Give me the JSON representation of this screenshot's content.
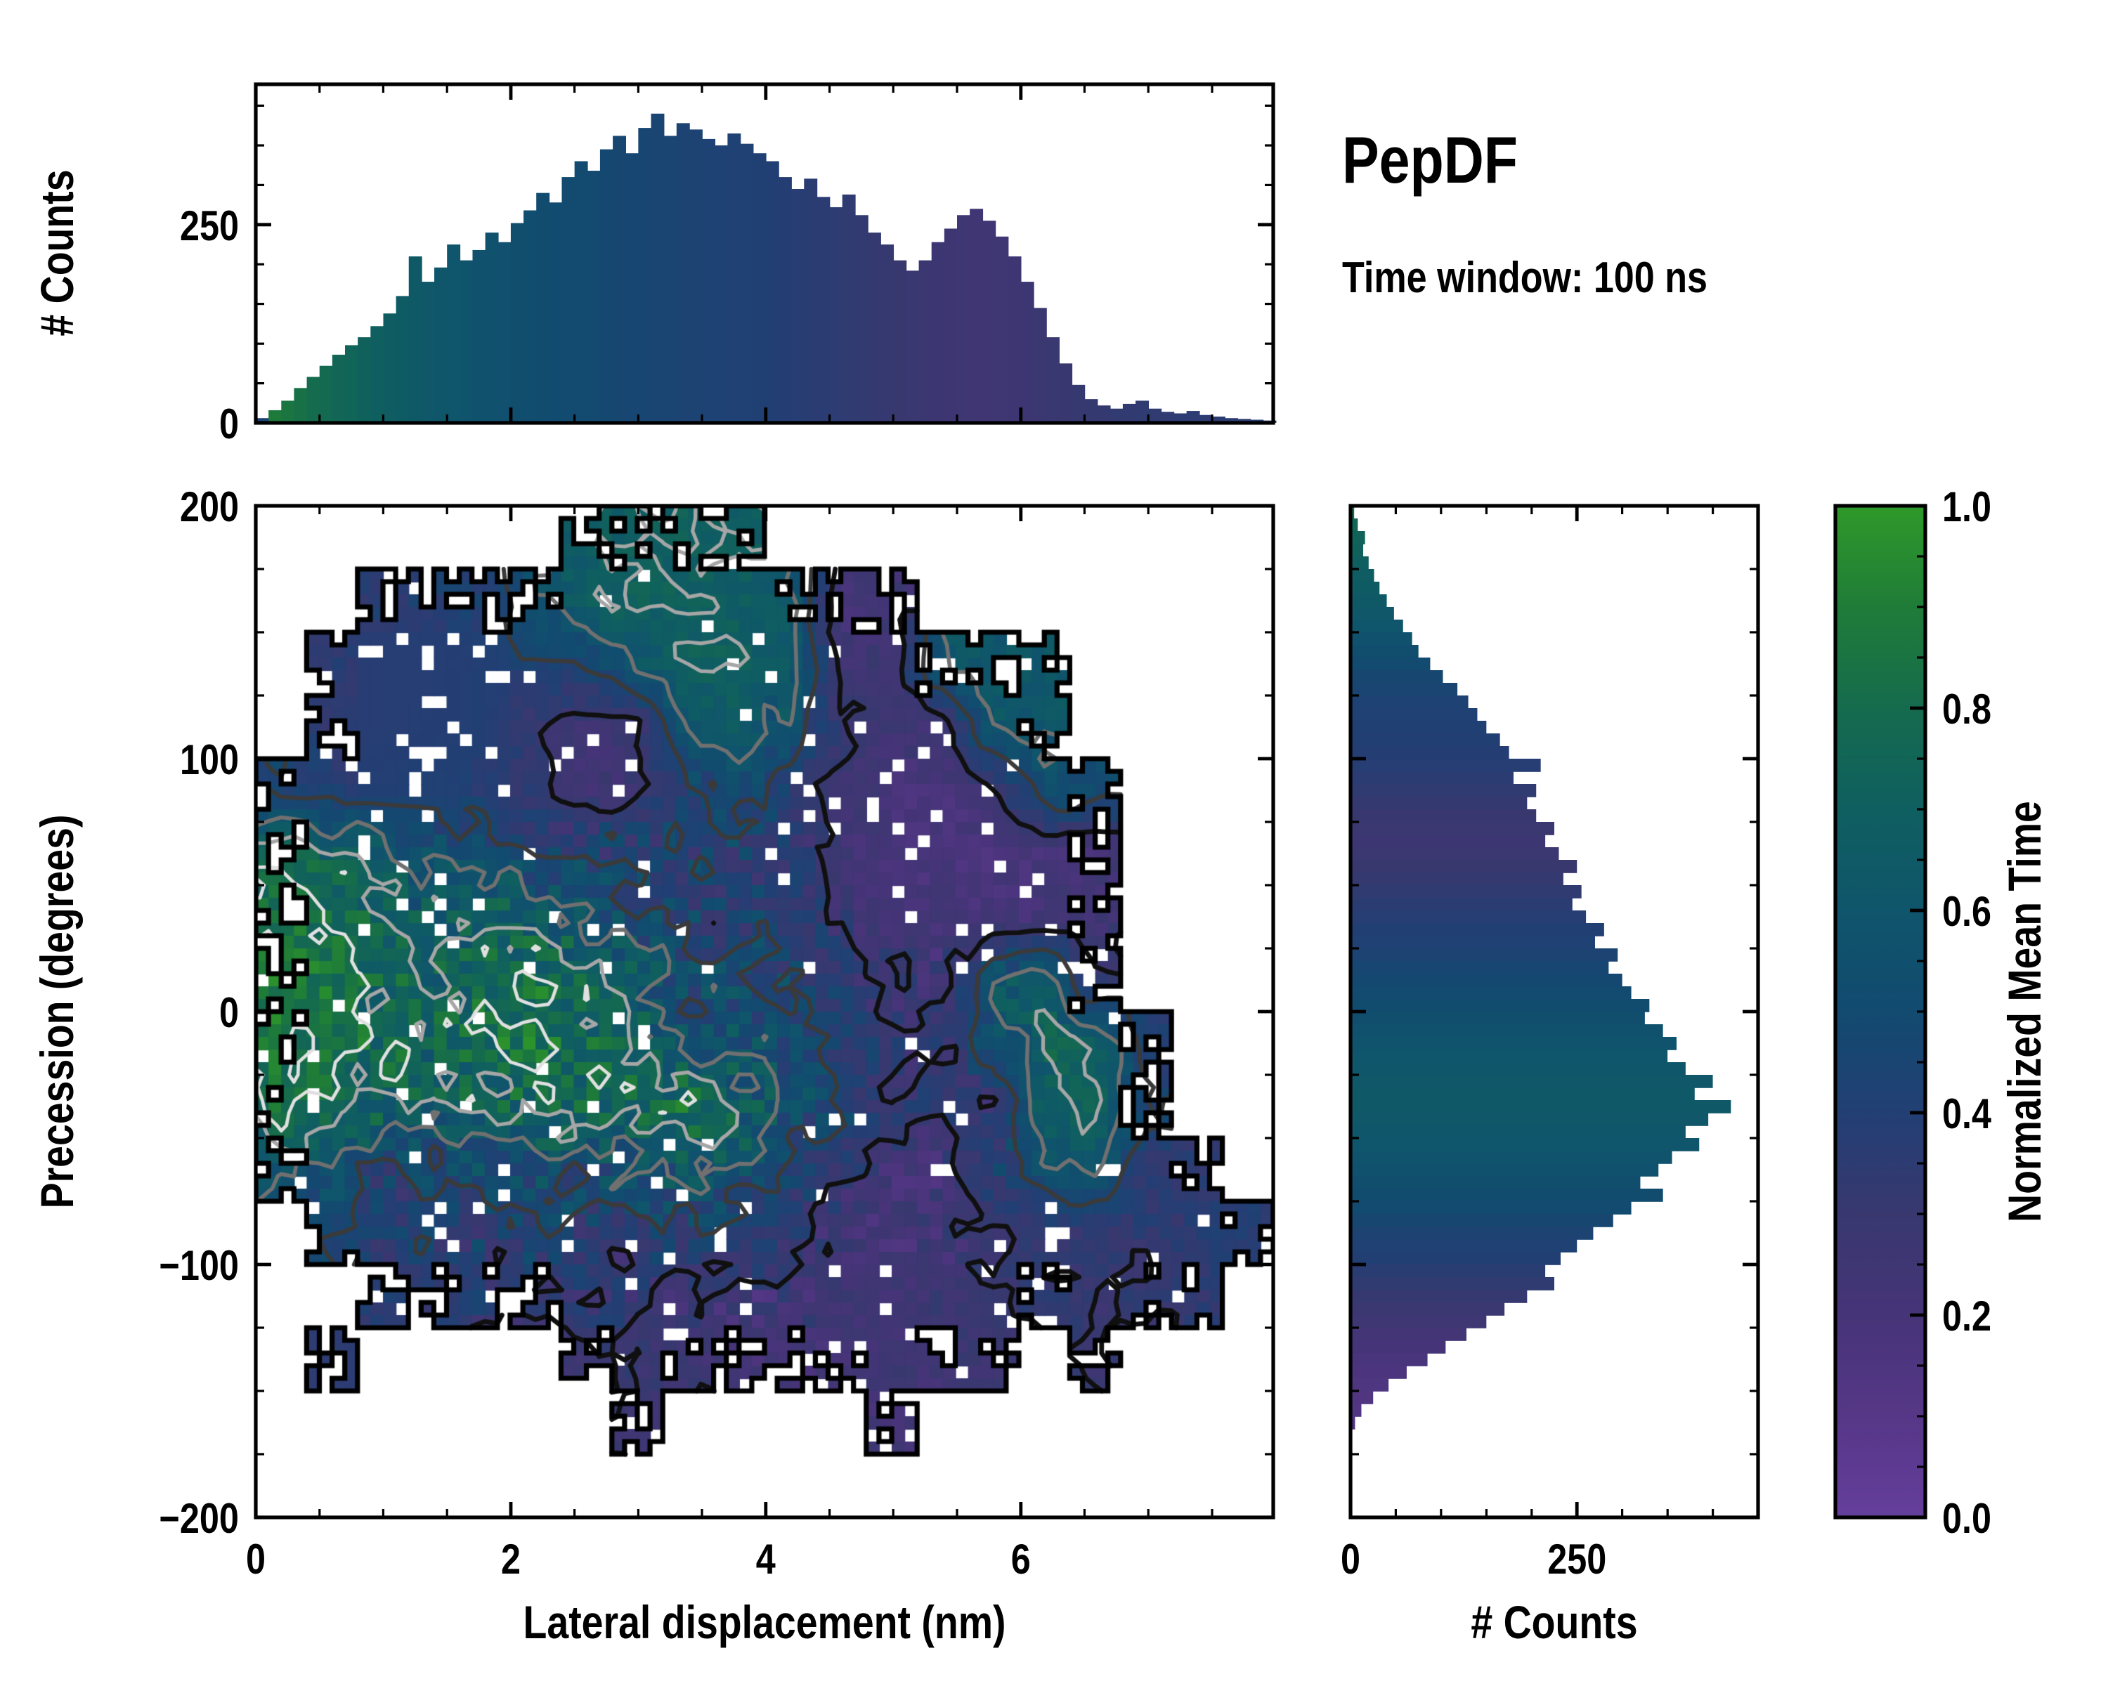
{
  "title": "PepDF",
  "subtitle": "Time window: 100 ns",
  "chart_data": {
    "type": "heatmap",
    "title": "PepDF",
    "subtitle": "Time window: 100 ns",
    "colormap": {
      "label": "Normalized Mean Time",
      "tick_labels": [
        "1.0",
        "0.8",
        "0.6",
        "0.4",
        "0.2",
        "0.0"
      ],
      "tick_values": [
        1.0,
        0.8,
        0.6,
        0.4,
        0.2,
        0.0
      ],
      "minor_step": 0.05,
      "stops": [
        [
          0.0,
          "#653e9c"
        ],
        [
          0.1,
          "#563787"
        ],
        [
          0.2,
          "#463478"
        ],
        [
          0.3,
          "#38386f"
        ],
        [
          0.4,
          "#223f74"
        ],
        [
          0.5,
          "#124a70"
        ],
        [
          0.6,
          "#0f556b"
        ],
        [
          0.7,
          "#0f5f60"
        ],
        [
          0.8,
          "#156b4d"
        ],
        [
          0.9,
          "#1f7c38"
        ],
        [
          1.0,
          "#2f9929"
        ]
      ]
    },
    "heatmap": {
      "xlabel": "Lateral displacement (nm)",
      "ylabel": "Precession (degrees)",
      "x_range": [
        0,
        8
      ],
      "y_range": [
        -200,
        200
      ],
      "x_tick_values": [
        0,
        2,
        4,
        6
      ],
      "x_tick_labels": [
        "0",
        "2",
        "4",
        "6"
      ],
      "x_minor_step": 0.5,
      "y_tick_values": [
        200,
        100,
        0,
        -100,
        -200
      ],
      "y_tick_labels": [
        "200",
        "100",
        "0",
        "−100",
        "−200"
      ],
      "y_minor_step": 25,
      "grid_cols": 20,
      "grid_rows": 16,
      "cell_size_nm": 0.1,
      "cell_size_deg": 5,
      "values": [
        [
          null,
          null,
          null,
          null,
          null,
          null,
          0.66,
          0.7,
          0.7,
          0.68,
          null,
          null,
          null,
          null,
          null,
          null,
          null,
          null,
          null,
          null
        ],
        [
          null,
          null,
          0.38,
          0.4,
          0.42,
          0.55,
          0.68,
          0.72,
          0.7,
          0.68,
          0.62,
          0.22,
          0.25,
          null,
          null,
          null,
          null,
          null,
          null,
          null
        ],
        [
          null,
          0.36,
          0.38,
          0.38,
          0.4,
          0.42,
          0.45,
          0.6,
          0.7,
          0.7,
          0.66,
          0.24,
          0.26,
          0.6,
          0.62,
          0.62,
          null,
          null,
          null,
          null
        ],
        [
          null,
          0.36,
          0.38,
          0.39,
          0.4,
          0.3,
          0.24,
          0.26,
          0.6,
          0.66,
          0.55,
          0.3,
          0.26,
          0.25,
          0.62,
          0.6,
          null,
          null,
          null,
          null
        ],
        [
          0.45,
          0.4,
          0.4,
          0.41,
          0.4,
          0.32,
          0.25,
          0.28,
          0.45,
          0.5,
          0.4,
          0.28,
          0.2,
          0.18,
          0.25,
          0.55,
          0.5,
          null,
          null,
          null
        ],
        [
          0.75,
          0.72,
          0.62,
          0.55,
          0.5,
          0.45,
          0.42,
          0.4,
          0.42,
          0.4,
          0.35,
          0.25,
          0.18,
          0.18,
          0.18,
          0.2,
          0.22,
          null,
          null,
          null
        ],
        [
          0.85,
          0.8,
          0.7,
          0.65,
          0.72,
          0.68,
          0.6,
          0.5,
          0.45,
          0.42,
          0.4,
          0.3,
          0.22,
          0.2,
          0.2,
          0.22,
          0.25,
          null,
          null,
          null
        ],
        [
          0.88,
          0.85,
          0.75,
          0.7,
          0.78,
          0.8,
          0.72,
          0.6,
          0.5,
          0.48,
          0.45,
          0.35,
          0.28,
          0.25,
          0.6,
          0.65,
          0.3,
          null,
          null,
          null
        ],
        [
          0.85,
          0.82,
          0.78,
          0.72,
          0.8,
          0.85,
          0.78,
          0.7,
          0.6,
          0.55,
          0.5,
          0.4,
          0.32,
          0.3,
          0.55,
          0.7,
          0.72,
          0.4,
          null,
          null
        ],
        [
          0.8,
          0.78,
          0.72,
          0.68,
          0.7,
          0.75,
          0.72,
          0.78,
          0.8,
          0.7,
          0.55,
          0.45,
          0.35,
          0.3,
          0.28,
          0.7,
          0.72,
          0.45,
          null,
          null
        ],
        [
          0.58,
          0.55,
          0.45,
          0.42,
          0.52,
          0.55,
          0.52,
          0.55,
          0.6,
          0.55,
          0.45,
          0.35,
          0.25,
          0.22,
          0.4,
          0.55,
          0.6,
          0.35,
          0.35,
          null
        ],
        [
          null,
          0.45,
          0.4,
          0.4,
          0.42,
          0.4,
          0.38,
          0.36,
          0.4,
          0.45,
          0.35,
          0.22,
          0.18,
          0.25,
          0.3,
          0.32,
          0.33,
          0.34,
          0.36,
          0.38
        ],
        [
          null,
          null,
          0.38,
          0.36,
          0.35,
          0.33,
          0.32,
          0.3,
          0.25,
          0.22,
          0.25,
          0.28,
          0.25,
          0.28,
          0.3,
          0.32,
          0.3,
          0.32,
          0.34,
          null
        ],
        [
          null,
          0.35,
          null,
          null,
          null,
          null,
          0.3,
          0.3,
          0.28,
          0.22,
          0.2,
          0.22,
          0.25,
          0.25,
          0.28,
          null,
          0.3,
          null,
          null,
          null
        ],
        [
          null,
          null,
          null,
          null,
          null,
          null,
          null,
          0.25,
          null,
          null,
          null,
          null,
          0.22,
          null,
          null,
          null,
          null,
          null,
          null,
          null
        ],
        [
          null,
          null,
          null,
          null,
          null,
          null,
          null,
          null,
          null,
          null,
          null,
          null,
          null,
          null,
          null,
          null,
          null,
          null,
          null,
          null
        ]
      ],
      "texture": [
        [
          0,
          0,
          0,
          0,
          0,
          0,
          1,
          1,
          1,
          1,
          0,
          0,
          0,
          0,
          0,
          0,
          0,
          0,
          0,
          0
        ],
        [
          0,
          0,
          1,
          1,
          1,
          1,
          1,
          1,
          1,
          1,
          1,
          1,
          1,
          0,
          0,
          0,
          0,
          0,
          0,
          0
        ],
        [
          0,
          1,
          0,
          0,
          0,
          1,
          1,
          1,
          1,
          1,
          1,
          1,
          1,
          1,
          1,
          1,
          0,
          0,
          0,
          0
        ],
        [
          0,
          1,
          0,
          0,
          0,
          1,
          1,
          1,
          1,
          1,
          2,
          1,
          1,
          1,
          1,
          1,
          0,
          0,
          0,
          0
        ],
        [
          1,
          1,
          0,
          0,
          1,
          1,
          1,
          1,
          2,
          2,
          2,
          1,
          1,
          1,
          1,
          1,
          1,
          0,
          0,
          0
        ],
        [
          1,
          2,
          2,
          2,
          2,
          3,
          3,
          3,
          3,
          3,
          2,
          1,
          1,
          1,
          1,
          1,
          1,
          0,
          0,
          0
        ],
        [
          2,
          2,
          3,
          3,
          3,
          3,
          3,
          3,
          3,
          3,
          2,
          2,
          1,
          1,
          1,
          1,
          1,
          0,
          0,
          0
        ],
        [
          2,
          2,
          3,
          3,
          3,
          3,
          3,
          3,
          3,
          3,
          3,
          2,
          2,
          2,
          2,
          1,
          1,
          0,
          0,
          0
        ],
        [
          2,
          2,
          3,
          3,
          3,
          3,
          3,
          3,
          3,
          3,
          3,
          2,
          2,
          2,
          2,
          2,
          1,
          1,
          0,
          0
        ],
        [
          2,
          2,
          3,
          3,
          3,
          3,
          3,
          3,
          3,
          3,
          3,
          2,
          2,
          2,
          2,
          1,
          1,
          1,
          0,
          0
        ],
        [
          1,
          2,
          3,
          3,
          3,
          3,
          3,
          3,
          3,
          3,
          2,
          2,
          2,
          2,
          2,
          1,
          1,
          1,
          1,
          0
        ],
        [
          0,
          1,
          2,
          2,
          3,
          3,
          3,
          3,
          3,
          2,
          2,
          2,
          2,
          2,
          1,
          1,
          1,
          1,
          1,
          1
        ],
        [
          0,
          0,
          1,
          1,
          2,
          2,
          2,
          2,
          2,
          2,
          2,
          1,
          1,
          1,
          1,
          1,
          1,
          1,
          1,
          0
        ],
        [
          0,
          0,
          0,
          0,
          0,
          0,
          1,
          1,
          1,
          1,
          1,
          1,
          1,
          1,
          1,
          0,
          1,
          1,
          0,
          0
        ],
        [
          0,
          0,
          0,
          0,
          0,
          0,
          0,
          1,
          0,
          0,
          0,
          0,
          1,
          0,
          0,
          0,
          0,
          0,
          0,
          0
        ],
        [
          0,
          0,
          0,
          0,
          0,
          0,
          0,
          0,
          0,
          0,
          0,
          0,
          0,
          0,
          0,
          0,
          0,
          0,
          0,
          0
        ]
      ],
      "contour_levels": [
        0.3,
        0.45,
        0.58,
        0.7,
        0.8
      ],
      "contour_colors": [
        "#101010",
        "#3a3a3a",
        "#707070",
        "#a6a6a6",
        "#e0e0e0"
      ]
    },
    "top_hist": {
      "ylabel": "# Counts",
      "y_tick_values": [
        0,
        250
      ],
      "y_tick_labels": [
        "0",
        "250"
      ],
      "y_max": 427,
      "y_minor_step": 50,
      "bin_start": 0,
      "bin_width": 0.1,
      "counts": [
        6,
        16,
        28,
        44,
        58,
        72,
        86,
        98,
        108,
        122,
        138,
        160,
        210,
        178,
        196,
        225,
        205,
        218,
        240,
        228,
        252,
        268,
        290,
        278,
        310,
        330,
        318,
        345,
        362,
        340,
        372,
        390,
        362,
        378,
        370,
        358,
        350,
        365,
        352,
        340,
        330,
        310,
        295,
        308,
        285,
        272,
        288,
        262,
        240,
        225,
        205,
        192,
        205,
        228,
        245,
        262,
        270,
        255,
        235,
        210,
        178,
        145,
        108,
        75,
        48,
        30,
        22,
        18,
        24,
        28,
        18,
        14,
        12,
        15,
        10,
        8,
        6,
        5,
        4,
        3
      ],
      "tones": [
        0.42,
        0.89,
        0.86,
        0.83,
        0.8,
        0.78,
        0.76,
        0.74,
        0.72,
        0.7,
        0.68,
        0.66,
        0.64,
        0.62,
        0.61,
        0.6,
        0.58,
        0.57,
        0.56,
        0.55,
        0.54,
        0.53,
        0.52,
        0.51,
        0.5,
        0.5,
        0.49,
        0.48,
        0.47,
        0.46,
        0.46,
        0.45,
        0.45,
        0.44,
        0.44,
        0.43,
        0.43,
        0.42,
        0.42,
        0.41,
        0.4,
        0.39,
        0.38,
        0.37,
        0.36,
        0.35,
        0.34,
        0.33,
        0.32,
        0.31,
        0.3,
        0.29,
        0.28,
        0.27,
        0.26,
        0.25,
        0.24,
        0.24,
        0.25,
        0.26,
        0.27,
        0.28,
        0.29,
        0.3,
        0.31,
        0.32,
        0.32,
        0.33,
        0.33,
        0.34,
        0.34,
        0.34,
        0.35,
        0.35,
        0.35,
        0.36,
        0.36,
        0.36,
        0.37,
        0.37
      ]
    },
    "right_hist": {
      "xlabel": "# Counts",
      "x_tick_values": [
        0,
        250
      ],
      "x_tick_labels": [
        "0",
        "250"
      ],
      "x_max": 450,
      "x_minor_step": 50,
      "bin_start": 200,
      "bin_width": -5,
      "counts": [
        4,
        8,
        16,
        14,
        20,
        26,
        32,
        40,
        48,
        58,
        68,
        75,
        88,
        102,
        118,
        130,
        140,
        150,
        165,
        175,
        210,
        180,
        205,
        195,
        205,
        225,
        215,
        230,
        250,
        235,
        255,
        245,
        260,
        280,
        270,
        295,
        285,
        300,
        310,
        330,
        325,
        345,
        360,
        350,
        370,
        400,
        380,
        420,
        395,
        370,
        385,
        355,
        340,
        320,
        345,
        310,
        290,
        268,
        250,
        232,
        215,
        225,
        195,
        170,
        150,
        128,
        105,
        85,
        62,
        42,
        25,
        12,
        5,
        0,
        0,
        0,
        0,
        0,
        0,
        0
      ],
      "tones": [
        0.78,
        0.75,
        0.73,
        0.72,
        0.7,
        0.68,
        0.66,
        0.64,
        0.62,
        0.6,
        0.57,
        0.54,
        0.5,
        0.47,
        0.45,
        0.43,
        0.42,
        0.41,
        0.4,
        0.39,
        0.38,
        0.36,
        0.34,
        0.32,
        0.3,
        0.28,
        0.27,
        0.28,
        0.3,
        0.32,
        0.34,
        0.36,
        0.38,
        0.4,
        0.42,
        0.44,
        0.46,
        0.48,
        0.5,
        0.52,
        0.54,
        0.56,
        0.58,
        0.6,
        0.61,
        0.62,
        0.63,
        0.63,
        0.62,
        0.61,
        0.6,
        0.58,
        0.56,
        0.54,
        0.52,
        0.5,
        0.47,
        0.44,
        0.42,
        0.4,
        0.37,
        0.34,
        0.31,
        0.28,
        0.25,
        0.22,
        0.2,
        0.18,
        0.16,
        0.15,
        0.14,
        0.13,
        0.12,
        0.12,
        0.12,
        0.12,
        0.12,
        0.12,
        0.12,
        0.12
      ]
    }
  }
}
